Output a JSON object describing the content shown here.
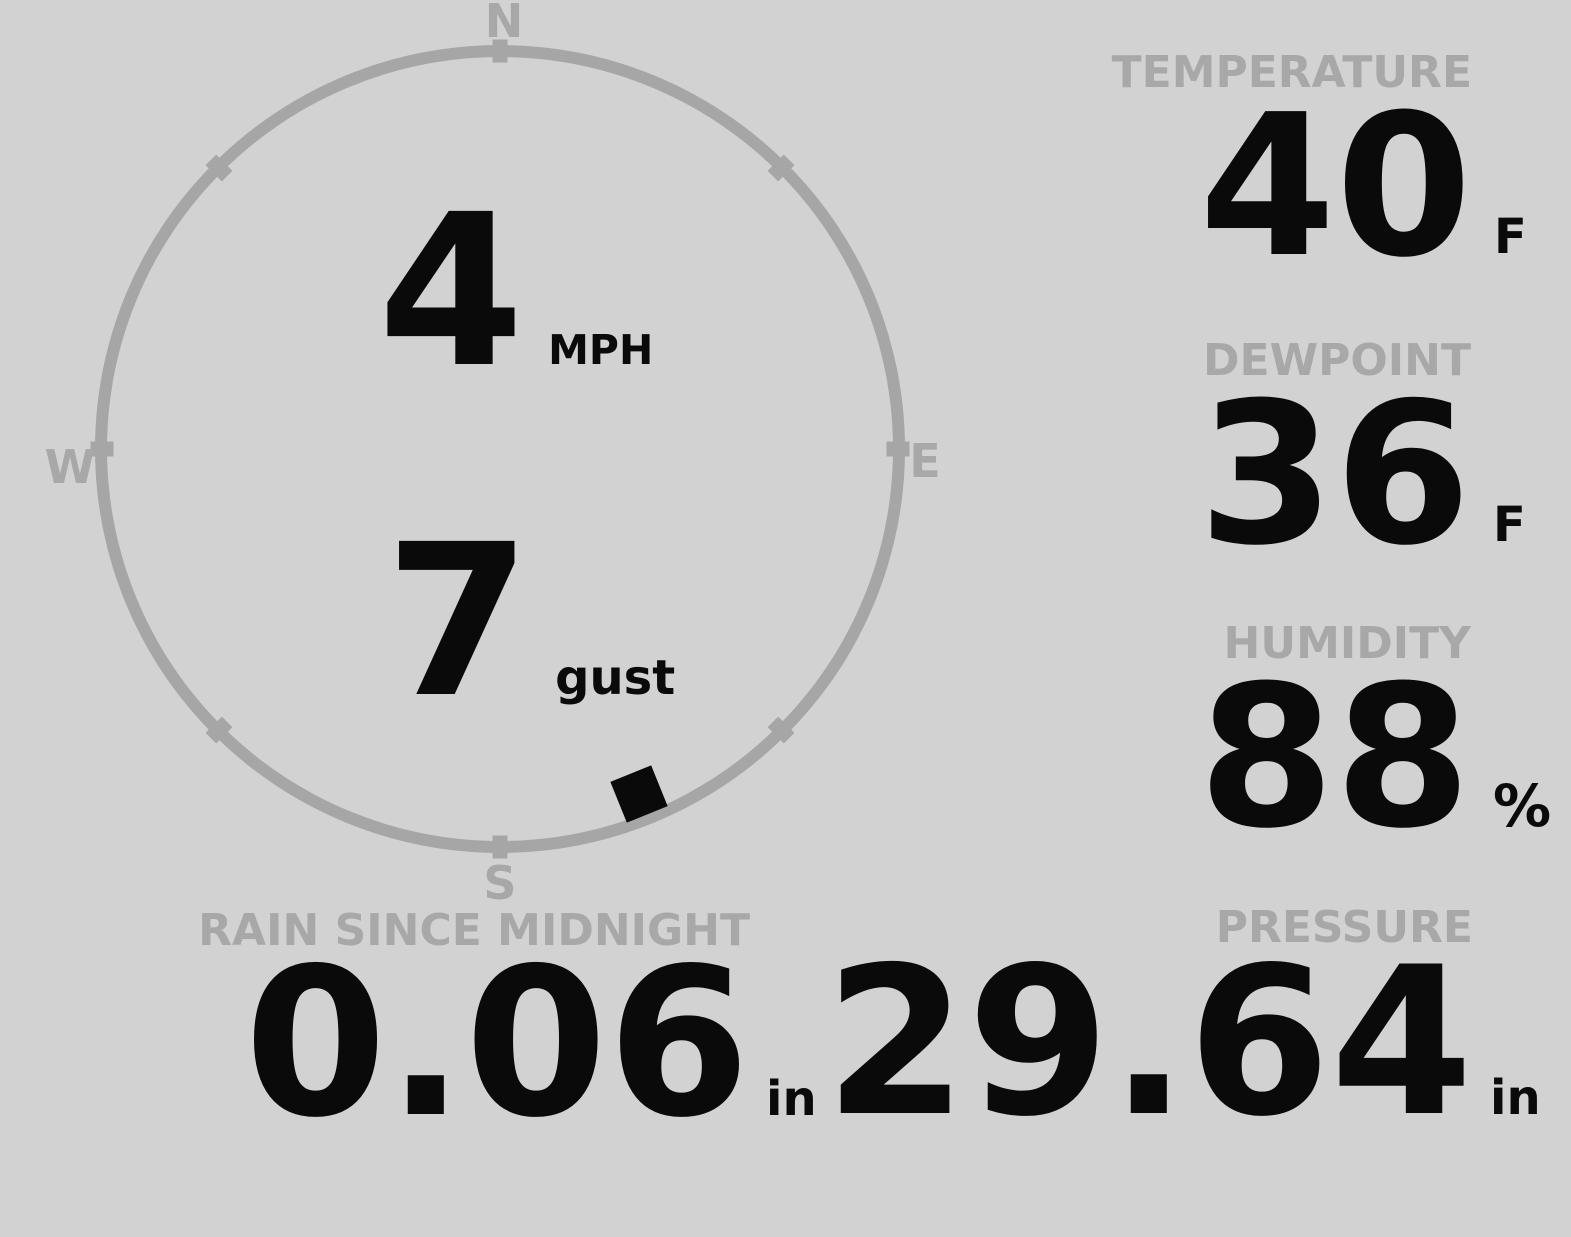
{
  "colors": {
    "background": "#d2d2d2",
    "muted": "#a8a8a8",
    "text": "#0a0a0a"
  },
  "compass": {
    "cardinals": {
      "n": "N",
      "e": "E",
      "s": "S",
      "w": "W"
    },
    "tick_angles_deg": [
      0,
      45,
      90,
      135,
      180,
      225,
      270,
      315
    ],
    "wind_speed": {
      "value": "4",
      "unit": "MPH"
    },
    "wind_gust": {
      "value": "7",
      "unit": "gust"
    },
    "marker_bearing_deg": 158
  },
  "metrics": {
    "temperature": {
      "label": "TEMPERATURE",
      "value": "40",
      "unit": "F"
    },
    "dewpoint": {
      "label": "DEWPOINT",
      "value": "36",
      "unit": "F"
    },
    "humidity": {
      "label": "HUMIDITY",
      "value": "88",
      "unit": "%"
    },
    "rain": {
      "label": "RAIN SINCE MIDNIGHT",
      "value": "0.06",
      "unit": "in"
    },
    "pressure": {
      "label": "PRESSURE",
      "value": "29.64",
      "unit": "in"
    }
  }
}
